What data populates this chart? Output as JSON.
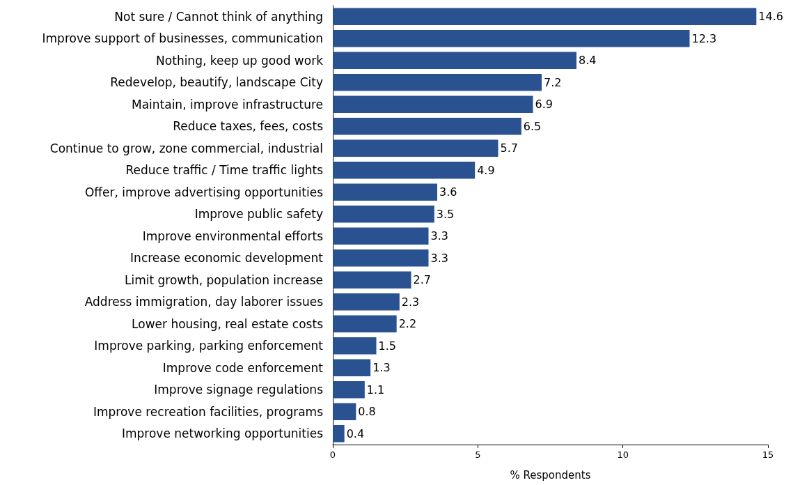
{
  "chart_data": {
    "type": "bar",
    "orientation": "horizontal",
    "xlabel": "% Respondents",
    "categories": [
      "Not sure / Cannot think of anything",
      "Improve support of businesses, communication",
      "Nothing, keep up good work",
      "Redevelop, beautify, landscape City",
      "Maintain, improve infrastructure",
      "Reduce taxes, fees, costs",
      "Continue to grow, zone commercial, industrial",
      "Reduce traffic / Time traffic lights",
      "Offer, improve advertising opportunities",
      "Improve public safety",
      "Improve environmental efforts",
      "Increase economic development",
      "Limit growth, population increase",
      "Address immigration, day laborer issues",
      "Lower housing, real estate costs",
      "Improve parking, parking enforcement",
      "Improve code enforcement",
      "Improve signage regulations",
      "Improve recreation facilities, programs",
      "Improve networking opportunities"
    ],
    "values": [
      14.6,
      12.3,
      8.4,
      7.2,
      6.9,
      6.5,
      5.7,
      4.9,
      3.6,
      3.5,
      3.3,
      3.3,
      2.7,
      2.3,
      2.2,
      1.5,
      1.3,
      1.1,
      0.8,
      0.4
    ],
    "color": "#2a5290",
    "xlim": [
      0,
      15
    ],
    "xticks": [
      0,
      5,
      10,
      15
    ],
    "grid": false,
    "data_labels": true
  }
}
